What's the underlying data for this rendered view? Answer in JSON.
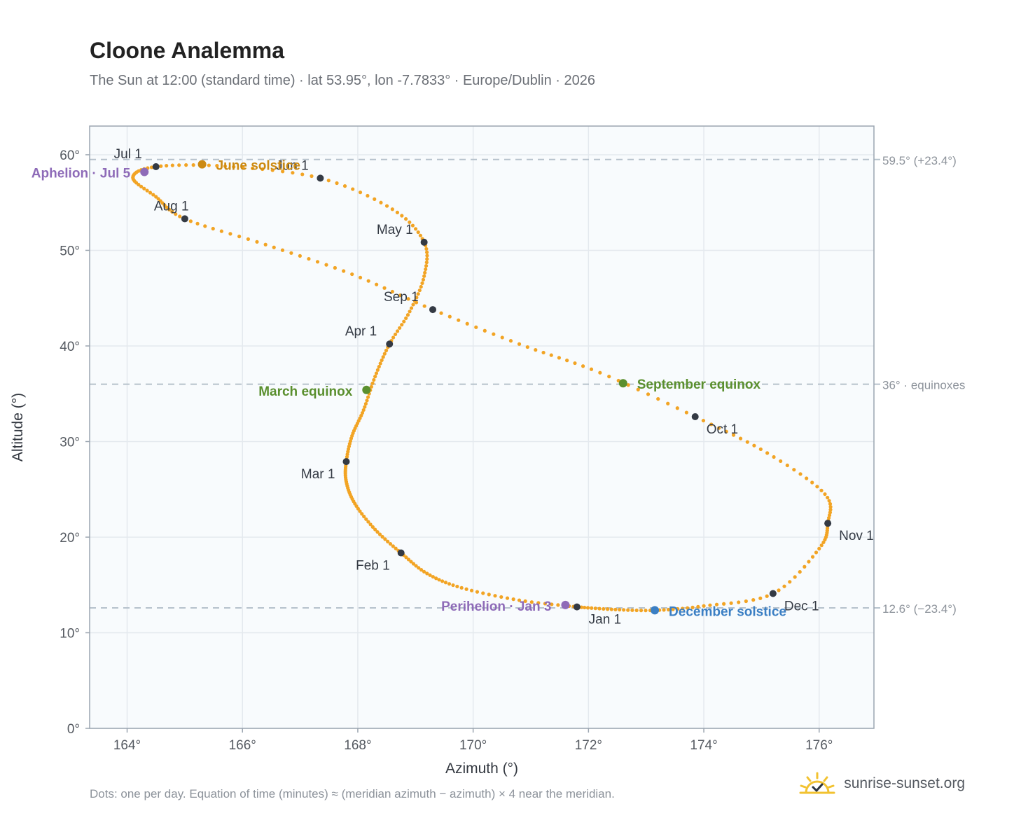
{
  "header": {
    "title": "Cloone Analemma",
    "subtitle": "The Sun at 12:00 (standard time) · lat 53.95°, lon -7.7833° · Europe/Dublin · 2026"
  },
  "footer": {
    "note": "Dots: one per day. Equation of time (minutes) ≈ (meridian azimuth − azimuth) × 4 near the meridian.",
    "brand": "sunrise-sunset.org",
    "brand_icon": "sun-check-icon"
  },
  "colors": {
    "path": "#f2a424",
    "month_marker": "#343a44",
    "equinox": "#5a8f2e",
    "june_solstice": "#cc8a12",
    "december_solstice": "#3b7fc4",
    "apsis": "#8e6bb8",
    "reference_line": "#b6c2cc",
    "plot_background": "#f8fbfd",
    "grid": "#e4e9ee",
    "frame": "#9ba5b0"
  },
  "chart_data": {
    "type": "scatter",
    "xlabel": "Azimuth (°)",
    "ylabel": "Altitude (°)",
    "xlim": [
      163.35,
      176.95
    ],
    "ylim": [
      0,
      63
    ],
    "x_ticks": [
      164,
      166,
      168,
      170,
      172,
      174,
      176
    ],
    "x_tick_labels": [
      "164°",
      "166°",
      "168°",
      "170°",
      "172°",
      "174°",
      "176°"
    ],
    "y_ticks": [
      0,
      10,
      20,
      30,
      40,
      50,
      60
    ],
    "y_tick_labels": [
      "0°",
      "10°",
      "20°",
      "30°",
      "40°",
      "50°",
      "60°"
    ],
    "grid": true,
    "daily_path": [
      [
        171.8,
        12.7
      ],
      [
        170.8,
        13.4
      ],
      [
        169.8,
        14.7
      ],
      [
        169.2,
        16.2
      ],
      [
        168.75,
        18.35
      ],
      [
        168.3,
        20.8
      ],
      [
        167.95,
        23.5
      ],
      [
        167.8,
        25.8
      ],
      [
        167.8,
        27.9
      ],
      [
        167.9,
        30.6
      ],
      [
        168.1,
        33.3
      ],
      [
        168.3,
        36.8
      ],
      [
        168.55,
        40.2
      ],
      [
        168.9,
        43.6
      ],
      [
        169.15,
        47.3
      ],
      [
        169.15,
        50.85
      ],
      [
        168.6,
        54.3
      ],
      [
        167.35,
        57.55
      ],
      [
        165.7,
        58.8
      ],
      [
        164.5,
        58.75
      ],
      [
        164.1,
        57.6
      ],
      [
        164.5,
        55.6
      ],
      [
        165.0,
        53.3
      ],
      [
        166.4,
        50.6
      ],
      [
        167.9,
        47.5
      ],
      [
        169.3,
        43.8
      ],
      [
        170.8,
        40.2
      ],
      [
        172.2,
        37.2
      ],
      [
        173.85,
        32.6
      ],
      [
        175.1,
        28.8
      ],
      [
        176.1,
        24.5
      ],
      [
        176.15,
        21.45
      ],
      [
        176.0,
        18.8
      ],
      [
        175.2,
        14.1
      ],
      [
        174.0,
        12.8
      ],
      [
        173.15,
        12.35
      ],
      [
        172.4,
        12.45
      ],
      [
        171.8,
        12.7
      ]
    ],
    "month_markers": [
      {
        "label": "Jan 1",
        "x": 171.8,
        "y": 12.7
      },
      {
        "label": "Feb 1",
        "x": 168.75,
        "y": 18.35
      },
      {
        "label": "Mar 1",
        "x": 167.8,
        "y": 27.9
      },
      {
        "label": "Apr 1",
        "x": 168.55,
        "y": 40.2
      },
      {
        "label": "May 1",
        "x": 169.15,
        "y": 50.85
      },
      {
        "label": "Jun 1",
        "x": 167.35,
        "y": 57.55
      },
      {
        "label": "Jul 1",
        "x": 164.5,
        "y": 58.75
      },
      {
        "label": "Aug 1",
        "x": 165.0,
        "y": 53.3
      },
      {
        "label": "Sep 1",
        "x": 169.3,
        "y": 43.8
      },
      {
        "label": "Oct 1",
        "x": 173.85,
        "y": 32.6
      },
      {
        "label": "Nov 1",
        "x": 176.15,
        "y": 21.45
      },
      {
        "label": "Dec 1",
        "x": 175.2,
        "y": 14.1
      }
    ],
    "events": [
      {
        "label": "March equinox",
        "x": 168.15,
        "y": 35.4,
        "color": "#5a8f2e"
      },
      {
        "label": "June solstice",
        "x": 165.3,
        "y": 59.0,
        "color": "#cc8a12"
      },
      {
        "label": "September equinox",
        "x": 172.6,
        "y": 36.1,
        "color": "#5a8f2e"
      },
      {
        "label": "December solstice",
        "x": 173.15,
        "y": 12.35,
        "color": "#3b7fc4"
      },
      {
        "label": "Perihelion · Jan 3",
        "x": 171.6,
        "y": 12.9,
        "color": "#8e6bb8"
      },
      {
        "label": "Aphelion · Jul 5",
        "x": 164.3,
        "y": 58.2,
        "color": "#8e6bb8"
      }
    ],
    "reference_lines": [
      {
        "y": 59.5,
        "label": "59.5° (+23.4°)"
      },
      {
        "y": 36,
        "label": "36° · equinoxes"
      },
      {
        "y": 12.6,
        "label": "12.6° (−23.4°)"
      }
    ]
  }
}
